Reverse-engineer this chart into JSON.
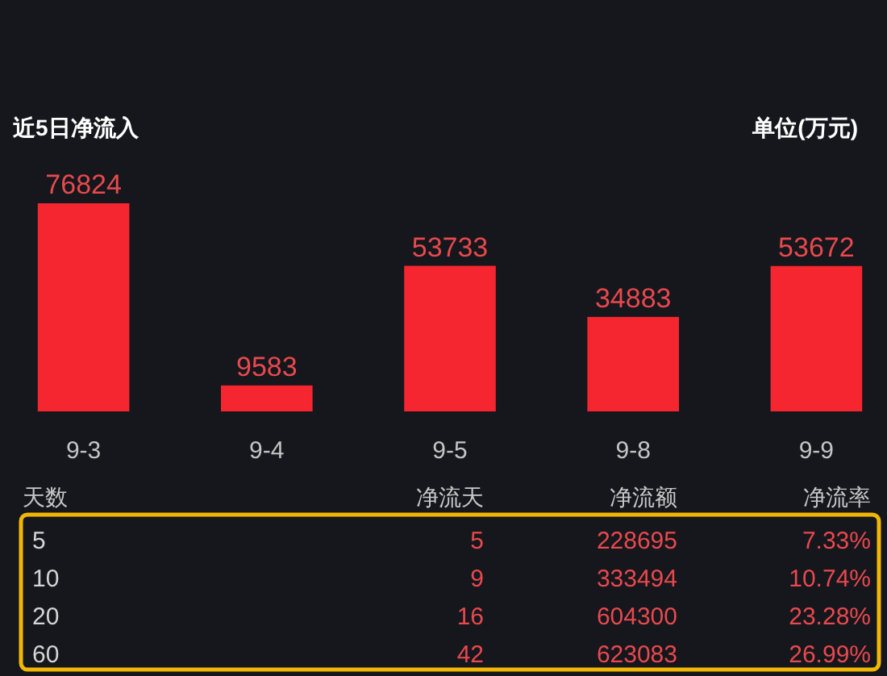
{
  "chart_data": [
    {
      "type": "bar",
      "title": "近5日净流入",
      "annotations": [
        "单位(万元)"
      ],
      "categories": [
        "9-3",
        "9-4",
        "9-5",
        "9-8",
        "9-9"
      ],
      "values": [
        76824,
        9583,
        53733,
        34883,
        53672
      ],
      "color": "#f5262f",
      "data_labels": true
    },
    {
      "type": "other",
      "categories": [
        "天数",
        "净流天",
        "净流额",
        "净流率"
      ],
      "cell_labels": [
        [
          "5",
          "5",
          "228695",
          "7.33%"
        ],
        [
          "10",
          "9",
          "333494",
          "10.74%"
        ],
        [
          "20",
          "16",
          "604300",
          "23.28%"
        ],
        [
          "60",
          "42",
          "623083",
          "26.99%"
        ]
      ]
    }
  ]
}
